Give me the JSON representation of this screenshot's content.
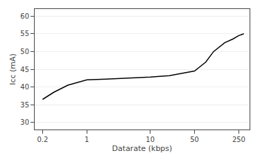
{
  "chart_data": {
    "type": "line",
    "x": [
      0.2,
      0.3,
      0.5,
      1.0,
      2.0,
      5.0,
      10.0,
      20.0,
      50.0,
      75.0,
      100.0,
      150.0,
      200.0,
      250.0,
      300.0
    ],
    "values": [
      36.5,
      38.5,
      40.5,
      42.0,
      42.2,
      42.5,
      42.8,
      43.2,
      44.5,
      47.0,
      50.0,
      52.5,
      53.5,
      54.5,
      55.0
    ],
    "xlabel": "Datarate (kbps)",
    "ylabel": "Icc (mA)",
    "log": "x",
    "xlim": [
      0.15,
      370
    ],
    "ylim": [
      28,
      62
    ],
    "xticks": [
      0.2,
      1,
      10,
      50,
      250
    ],
    "yticks": [
      30,
      35,
      40,
      45,
      50,
      55,
      60
    ],
    "grid": "y",
    "color": "#000000"
  }
}
